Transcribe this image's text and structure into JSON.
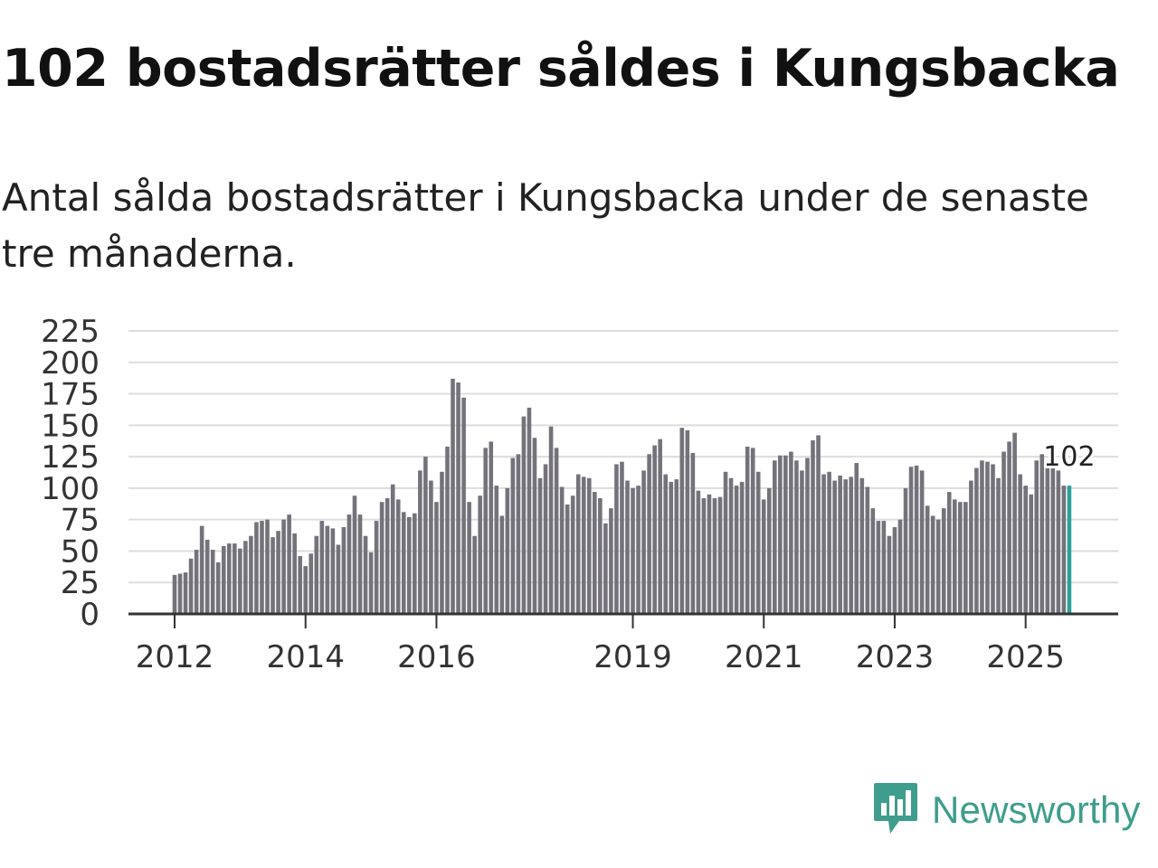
{
  "title": "102 bostadsrätter såldes i Kungsbacka",
  "subtitle": "Antal sålda bostadsrätter i Kungsbacka under de senaste tre månaderna.",
  "brand": {
    "name": "Newsworthy",
    "color": "#3e9d8c",
    "icon": "chat-bar-chart-icon"
  },
  "chart_data": {
    "type": "bar",
    "title": "102 bostadsrätter såldes i Kungsbacka",
    "xlabel": "",
    "ylabel": "",
    "ylim": [
      0,
      225
    ],
    "yticks": [
      "0",
      "25",
      "50",
      "75",
      "100",
      "125",
      "150",
      "175",
      "200",
      "225"
    ],
    "xticks": [
      {
        "label": "2012",
        "index": 0
      },
      {
        "label": "2014",
        "index": 24
      },
      {
        "label": "2016",
        "index": 48
      },
      {
        "label": "2019",
        "index": 84
      },
      {
        "label": "2021",
        "index": 108
      },
      {
        "label": "2023",
        "index": 132
      },
      {
        "label": "2025",
        "index": 156
      }
    ],
    "bar_color": "#74727a",
    "highlight_color": "#2aa198",
    "highlight_label": "102",
    "series": [
      {
        "name": "Antal sålda bostadsrätter",
        "values": [
          31,
          32,
          33,
          44,
          51,
          70,
          59,
          51,
          41,
          54,
          56,
          56,
          52,
          58,
          62,
          73,
          74,
          75,
          61,
          66,
          75,
          79,
          64,
          46,
          38,
          48,
          62,
          74,
          70,
          68,
          55,
          69,
          79,
          94,
          79,
          62,
          49,
          74,
          89,
          92,
          103,
          91,
          81,
          77,
          80,
          114,
          125,
          106,
          89,
          113,
          133,
          187,
          184,
          172,
          89,
          62,
          94,
          132,
          137,
          102,
          78,
          100,
          124,
          127,
          157,
          164,
          140,
          108,
          119,
          149,
          132,
          101,
          87,
          94,
          111,
          109,
          108,
          97,
          92,
          72,
          84,
          119,
          121,
          106,
          100,
          102,
          114,
          127,
          134,
          139,
          111,
          105,
          107,
          148,
          146,
          128,
          98,
          92,
          95,
          92,
          93,
          113,
          108,
          102,
          105,
          133,
          132,
          113,
          91,
          100,
          122,
          126,
          126,
          129,
          122,
          114,
          124,
          138,
          142,
          111,
          113,
          106,
          110,
          107,
          109,
          120,
          108,
          101,
          84,
          74,
          74,
          62,
          69,
          75,
          100,
          117,
          118,
          114,
          86,
          78,
          75,
          84,
          97,
          91,
          89,
          89,
          106,
          116,
          122,
          121,
          119,
          108,
          129,
          137,
          144,
          111,
          102,
          95,
          122,
          127,
          118,
          119,
          114,
          102,
          102
        ]
      }
    ]
  }
}
